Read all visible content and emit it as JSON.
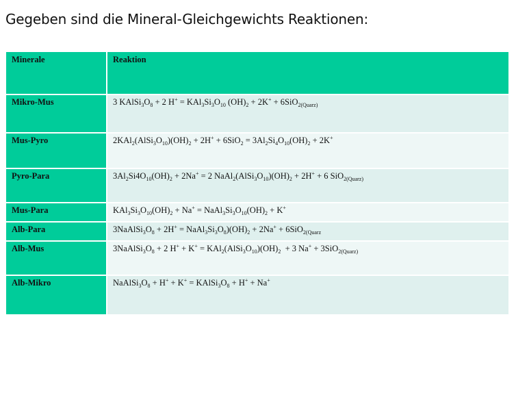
{
  "heading": "Gegeben sind die Mineral-Gleichgewichts Reaktionen:",
  "table": {
    "columns": [
      "Minerale",
      "Reaktion"
    ],
    "rows": [
      {
        "name": "Mikro-Mus",
        "reaction": "3 KAlSi3O8 + 2 H+ = KAl3Si3O10 (OH)2 + 2K+ + 6SiO2(Quarz)"
      },
      {
        "name": "Mus-Pyro",
        "reaction": "2KAl2(AlSi3O10)(OH)2 + 2H+ + 6SiO2 = 3Al2Si4O10(OH)2 + 2K+"
      },
      {
        "name": "Pyro-Para",
        "reaction": "3Al2Si4O10(OH)2 + 2Na+ = 2 NaAl2(AlSi3O10)(OH)2 + 2H+ + 6 SiO2(Quarz)"
      },
      {
        "name": "Mus-Para",
        "reaction": "KAl3Si3O10(OH)2 + Na+ = NaAl3Si3O10(OH)2 + K+"
      },
      {
        "name": "Alb-Para",
        "reaction": "3NaAlSi3O8 + 2H+ = NaAl3Si3O8)(OH)2 + 2Na+ + 6SiO2(Quarz"
      },
      {
        "name": "Alb-Mus",
        "reaction": "3NaAlSi3O8 + 2 H+ + K+ = KAl2(AlSi3O10)(OH)2 + 3 Na+ + 3SiO2(Quarz)"
      },
      {
        "name": "Alb-Mikro",
        "reaction": "NaAlSi3O8 + H+ + K+ = KAlSi3O8 + H+ + Na+"
      }
    ]
  }
}
